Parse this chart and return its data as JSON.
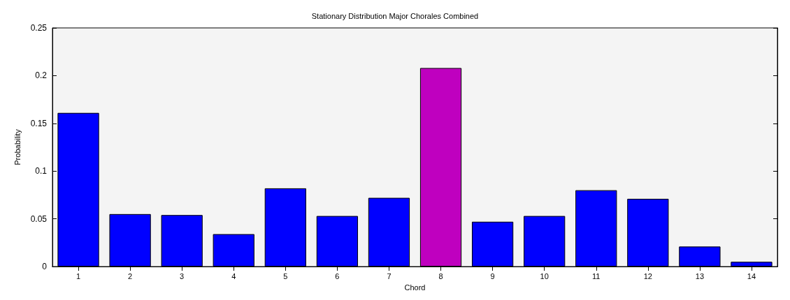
{
  "chart_data": {
    "type": "bar",
    "title": "Stationary Distribution Major Chorales Combined",
    "xlabel": "Chord",
    "ylabel": "Probability",
    "categories": [
      "1",
      "2",
      "3",
      "4",
      "5",
      "6",
      "7",
      "8",
      "9",
      "10",
      "11",
      "12",
      "13",
      "14"
    ],
    "values": [
      0.161,
      0.055,
      0.054,
      0.034,
      0.082,
      0.053,
      0.072,
      0.208,
      0.047,
      0.053,
      0.08,
      0.071,
      0.021,
      0.005
    ],
    "colors": [
      "#0000ff",
      "#0000ff",
      "#0000ff",
      "#0000ff",
      "#0000ff",
      "#0000ff",
      "#0000ff",
      "#bf00bf",
      "#0000ff",
      "#0000ff",
      "#0000ff",
      "#0000ff",
      "#0000ff",
      "#0000ff"
    ],
    "ylim": [
      0,
      0.25
    ],
    "yticks": [
      0,
      0.05,
      0.1,
      0.15,
      0.2,
      0.25
    ],
    "grid": false
  }
}
